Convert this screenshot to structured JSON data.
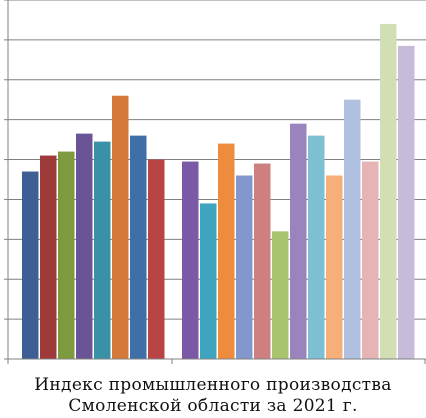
{
  "caption": {
    "line1": "Индекс промышленного производства",
    "line2": "Смоленской области за 2021 г."
  },
  "chart_data": {
    "type": "bar",
    "title": "",
    "xlabel": "",
    "ylabel": "",
    "ylim": [
      0,
      9
    ],
    "grid": true,
    "legend": "none",
    "groups": [
      {
        "bars": [
          {
            "value": 4.7,
            "color": "#3D5F94"
          },
          {
            "value": 5.1,
            "color": "#9E3A3A"
          },
          {
            "value": 5.2,
            "color": "#7E9A3E"
          },
          {
            "value": 5.65,
            "color": "#6B5495"
          },
          {
            "value": 5.45,
            "color": "#3891A6"
          },
          {
            "value": 6.6,
            "color": "#D4793A"
          },
          {
            "value": 5.6,
            "color": "#3F6FA8"
          },
          {
            "value": 5.0,
            "color": "#B84444"
          }
        ]
      },
      {
        "bars": [
          {
            "value": 4.95,
            "color": "#7A5AA6"
          },
          {
            "value": 3.9,
            "color": "#3FA5BE"
          },
          {
            "value": 5.4,
            "color": "#EE8C3D"
          },
          {
            "value": 4.6,
            "color": "#8297CC"
          },
          {
            "value": 4.9,
            "color": "#CE8080"
          },
          {
            "value": 3.2,
            "color": "#A8C46C"
          },
          {
            "value": 5.9,
            "color": "#9A84BE"
          },
          {
            "value": 5.6,
            "color": "#7DC0D3"
          },
          {
            "value": 4.6,
            "color": "#F8AE78"
          },
          {
            "value": 6.5,
            "color": "#AFC0E0"
          },
          {
            "value": 4.95,
            "color": "#E6B4B4"
          },
          {
            "value": 8.4,
            "color": "#D2DFB4"
          },
          {
            "value": 7.85,
            "color": "#C6BCDA"
          }
        ]
      }
    ]
  }
}
